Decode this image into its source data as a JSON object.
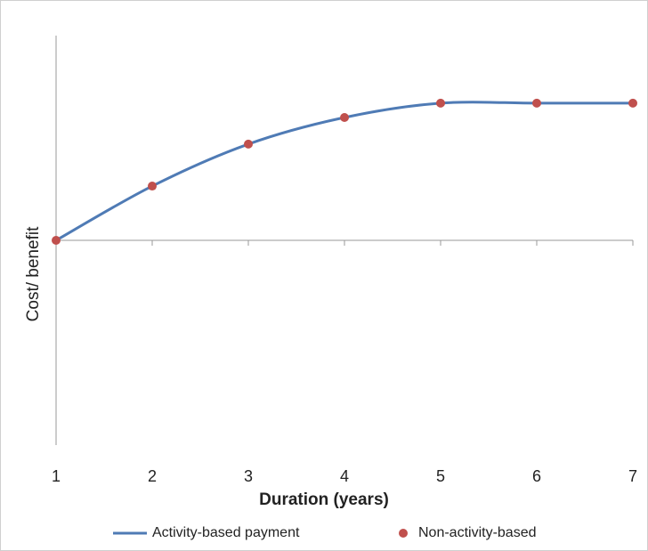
{
  "chart_data": {
    "type": "line",
    "x_label": "Duration (years)",
    "y_label": "Cost/ benefit",
    "x": [
      1,
      2,
      3,
      4,
      5,
      6,
      7
    ],
    "xlim": [
      1,
      7
    ],
    "xticks": [
      1,
      2,
      3,
      4,
      5,
      6,
      7
    ],
    "ylim": [
      -1,
      1
    ],
    "series": [
      {
        "name": "Activity-based payment",
        "color": "#4f7bb5",
        "style": "line",
        "values": [
          0,
          0.265,
          0.47,
          0.6,
          0.67,
          0.67,
          0.67
        ]
      },
      {
        "name": "Non-activity-based",
        "color": "#c0504d",
        "style": "markers",
        "values": [
          0,
          0.265,
          0.47,
          0.6,
          0.67,
          0.67,
          0.67
        ]
      }
    ]
  }
}
